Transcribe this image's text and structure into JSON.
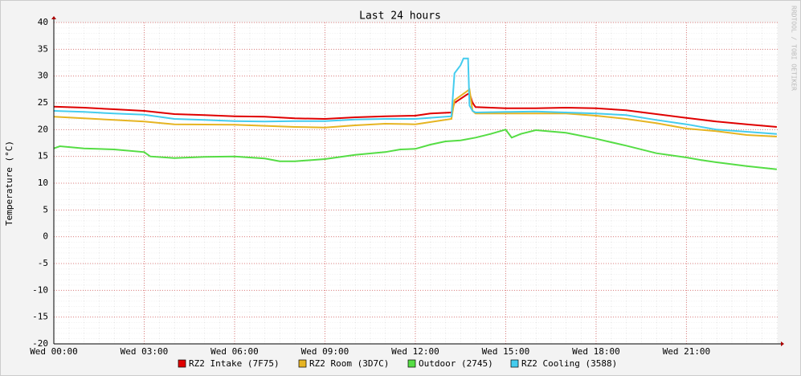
{
  "chart_data": {
    "type": "line",
    "title": "Last 24 hours",
    "y_label": "Temperature (°C)",
    "watermark": "RRDTOOL / TOBI OETIKER",
    "xlim": [
      0,
      24.03
    ],
    "ylim": [
      -20,
      40
    ],
    "xticks": [
      {
        "value": 0,
        "label": "Wed 00:00"
      },
      {
        "value": 3,
        "label": "Wed 03:00"
      },
      {
        "value": 6,
        "label": "Wed 06:00"
      },
      {
        "value": 9,
        "label": "Wed 09:00"
      },
      {
        "value": 12,
        "label": "Wed 12:00"
      },
      {
        "value": 15,
        "label": "Wed 15:00"
      },
      {
        "value": 18,
        "label": "Wed 18:00"
      },
      {
        "value": 21,
        "label": "Wed 21:00"
      }
    ],
    "yticks": [
      -20,
      -15,
      -10,
      -5,
      0,
      5,
      10,
      15,
      20,
      25,
      30,
      35,
      40
    ],
    "grid": true,
    "series": [
      {
        "name": "RZ2 Intake (7F75)",
        "color": "#e00000",
        "x": [
          0,
          1,
          2,
          3,
          4,
          5,
          6,
          7,
          8,
          9,
          10,
          11,
          12,
          12.5,
          13.2,
          13.3,
          13.7,
          13.8,
          13.9,
          14,
          15,
          16,
          17,
          18,
          19,
          20,
          21,
          22,
          23,
          24
        ],
        "values": [
          24.3,
          24.1,
          23.8,
          23.5,
          22.9,
          22.7,
          22.5,
          22.4,
          22.1,
          22.0,
          22.3,
          22.5,
          22.6,
          23.0,
          23.2,
          25.0,
          26.5,
          26.8,
          25.0,
          24.2,
          24.0,
          24.0,
          24.1,
          24.0,
          23.6,
          22.9,
          22.2,
          21.5,
          21.0,
          20.5
        ]
      },
      {
        "name": "RZ2 Room (3D7C)",
        "color": "#e6b422",
        "x": [
          0,
          1,
          2,
          3,
          4,
          6,
          8,
          9,
          10,
          11,
          12,
          13.2,
          13.3,
          13.8,
          13.9,
          14,
          15,
          17,
          18,
          19,
          20,
          21,
          22,
          23,
          24
        ],
        "values": [
          22.4,
          22.1,
          21.8,
          21.5,
          21.0,
          20.9,
          20.5,
          20.4,
          20.8,
          21.1,
          21.0,
          22.0,
          25.5,
          27.5,
          23.5,
          23.0,
          23.0,
          23.0,
          22.6,
          22.0,
          21.2,
          20.2,
          19.7,
          19.0,
          18.7
        ]
      },
      {
        "name": "Outdoor (2745)",
        "color": "#55dd44",
        "x": [
          0,
          0.2,
          1,
          2,
          3,
          3.2,
          4,
          5,
          6,
          7,
          7.5,
          8,
          9,
          10,
          11,
          11.5,
          12,
          12.5,
          13,
          13.5,
          14,
          14.5,
          15,
          15.2,
          15.5,
          16,
          17,
          18,
          19,
          20,
          21,
          21.5,
          22,
          23,
          24
        ],
        "values": [
          16.5,
          16.9,
          16.5,
          16.3,
          15.8,
          15.0,
          14.7,
          14.9,
          15.0,
          14.6,
          14.1,
          14.1,
          14.5,
          15.3,
          15.8,
          16.3,
          16.4,
          17.2,
          17.8,
          18.0,
          18.5,
          19.2,
          20.0,
          18.5,
          19.2,
          19.9,
          19.4,
          18.3,
          17.0,
          15.6,
          14.8,
          14.3,
          13.9,
          13.2,
          12.6
        ]
      },
      {
        "name": "RZ2 Cooling (3588)",
        "color": "#44ccee",
        "x": [
          0,
          1,
          2,
          3,
          4,
          5,
          6,
          7,
          8,
          9,
          10,
          11,
          12,
          13.2,
          13.3,
          13.5,
          13.6,
          13.75,
          13.8,
          13.9,
          14,
          15,
          16,
          17,
          18,
          19,
          20,
          21,
          22,
          23,
          24
        ],
        "values": [
          23.5,
          23.3,
          23.0,
          22.8,
          22.0,
          21.8,
          21.6,
          21.5,
          21.6,
          21.6,
          21.9,
          22.0,
          22.0,
          22.5,
          30.5,
          32.0,
          33.3,
          33.3,
          24.5,
          23.5,
          23.2,
          23.3,
          23.4,
          23.2,
          23.0,
          22.7,
          21.8,
          21.0,
          20.0,
          19.6,
          19.2
        ]
      }
    ]
  }
}
